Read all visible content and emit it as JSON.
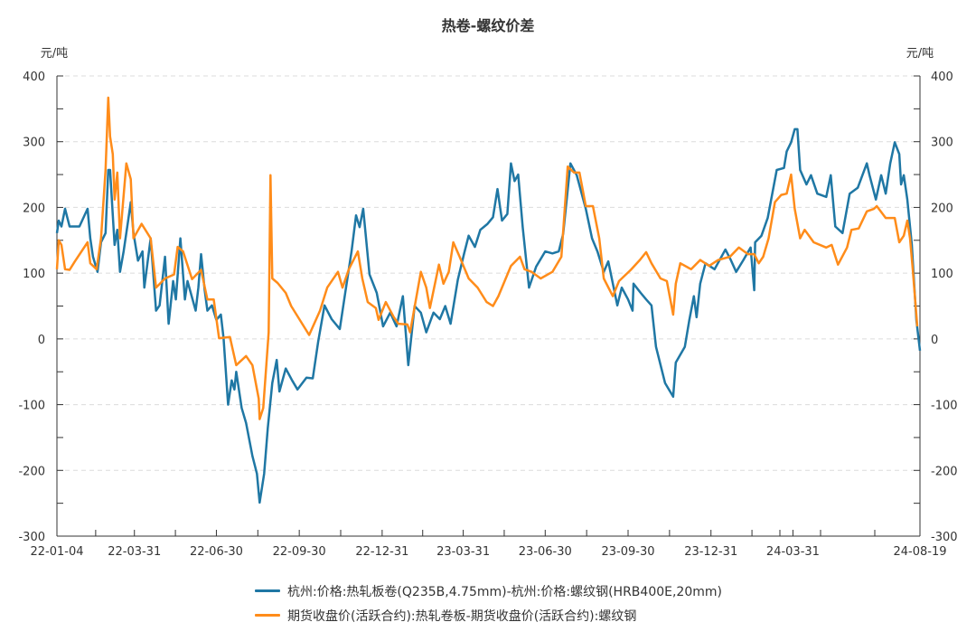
{
  "chart_data": {
    "type": "line",
    "title": "热卷-螺纹价差",
    "ylabel_left": "元/吨",
    "ylabel_right": "元/吨",
    "ylim": [
      -300,
      400
    ],
    "yticks": [
      400,
      300,
      200,
      100,
      0,
      -100,
      -200,
      -300
    ],
    "x_unit": "days since 22-01-04",
    "xlim": [
      0,
      958
    ],
    "xticks": [
      {
        "label": "22-01-04",
        "x": 0
      },
      {
        "label": "22-03-31",
        "x": 86
      },
      {
        "label": "22-06-30",
        "x": 177
      },
      {
        "label": "22-09-30",
        "x": 269
      },
      {
        "label": "22-12-31",
        "x": 361
      },
      {
        "label": "23-03-31",
        "x": 451
      },
      {
        "label": "23-06-30",
        "x": 542
      },
      {
        "label": "23-09-30",
        "x": 634
      },
      {
        "label": "23-12-31",
        "x": 726
      },
      {
        "label": "24-03-31",
        "x": 817
      },
      {
        "label": "24-08-19",
        "x": 958
      }
    ],
    "grid": true,
    "legend_position": "bottom",
    "series": [
      {
        "name": "杭州:价格:热轧板卷(Q235B,4.75mm)-杭州:价格:螺纹钢(HRB400E,20mm)",
        "color": "#1f77a4",
        "points": [
          [
            0,
            161
          ],
          [
            2,
            180
          ],
          [
            5,
            171
          ],
          [
            9,
            198
          ],
          [
            14,
            171
          ],
          [
            25,
            171
          ],
          [
            34,
            198
          ],
          [
            37,
            153
          ],
          [
            40,
            125
          ],
          [
            45,
            102
          ],
          [
            49,
            147
          ],
          [
            54,
            161
          ],
          [
            57,
            257
          ],
          [
            59,
            257
          ],
          [
            64,
            143
          ],
          [
            67,
            166
          ],
          [
            70,
            102
          ],
          [
            74,
            133
          ],
          [
            79,
            180
          ],
          [
            82,
            208
          ],
          [
            85,
            161
          ],
          [
            90,
            119
          ],
          [
            95,
            133
          ],
          [
            97,
            78
          ],
          [
            104,
            153
          ],
          [
            110,
            43
          ],
          [
            114,
            51
          ],
          [
            120,
            125
          ],
          [
            124,
            23
          ],
          [
            129,
            88
          ],
          [
            132,
            60
          ],
          [
            137,
            153
          ],
          [
            142,
            60
          ],
          [
            145,
            88
          ],
          [
            154,
            43
          ],
          [
            157,
            78
          ],
          [
            160,
            129
          ],
          [
            164,
            74
          ],
          [
            167,
            43
          ],
          [
            172,
            51
          ],
          [
            177,
            29
          ],
          [
            182,
            37
          ],
          [
            185,
            1
          ],
          [
            190,
            -100
          ],
          [
            194,
            -63
          ],
          [
            197,
            -77
          ],
          [
            199,
            -50
          ],
          [
            205,
            -105
          ],
          [
            210,
            -128
          ],
          [
            217,
            -178
          ],
          [
            222,
            -205
          ],
          [
            225,
            -249
          ],
          [
            230,
            -205
          ],
          [
            234,
            -136
          ],
          [
            239,
            -67
          ],
          [
            244,
            -32
          ],
          [
            247,
            -80
          ],
          [
            254,
            -45
          ],
          [
            261,
            -63
          ],
          [
            267,
            -77
          ],
          [
            277,
            -59
          ],
          [
            284,
            -60
          ],
          [
            290,
            -4
          ],
          [
            297,
            51
          ],
          [
            305,
            30
          ],
          [
            314,
            15
          ],
          [
            320,
            70
          ],
          [
            327,
            133
          ],
          [
            332,
            188
          ],
          [
            336,
            170
          ],
          [
            340,
            198
          ],
          [
            347,
            98
          ],
          [
            355,
            70
          ],
          [
            362,
            19
          ],
          [
            370,
            40
          ],
          [
            377,
            19
          ],
          [
            384,
            65
          ],
          [
            390,
            -40
          ],
          [
            397,
            50
          ],
          [
            404,
            40
          ],
          [
            410,
            10
          ],
          [
            418,
            40
          ],
          [
            425,
            30
          ],
          [
            431,
            50
          ],
          [
            437,
            23
          ],
          [
            445,
            90
          ],
          [
            452,
            130
          ],
          [
            457,
            157
          ],
          [
            464,
            140
          ],
          [
            470,
            166
          ],
          [
            478,
            175
          ],
          [
            484,
            185
          ],
          [
            489,
            228
          ],
          [
            494,
            180
          ],
          [
            500,
            190
          ],
          [
            504,
            267
          ],
          [
            508,
            240
          ],
          [
            512,
            250
          ],
          [
            517,
            170
          ],
          [
            524,
            78
          ],
          [
            532,
            110
          ],
          [
            542,
            133
          ],
          [
            550,
            130
          ],
          [
            557,
            133
          ],
          [
            562,
            160
          ],
          [
            570,
            267
          ],
          [
            577,
            249
          ],
          [
            587,
            198
          ],
          [
            594,
            153
          ],
          [
            600,
            133
          ],
          [
            607,
            102
          ],
          [
            612,
            118
          ],
          [
            622,
            51
          ],
          [
            627,
            78
          ],
          [
            634,
            60
          ],
          [
            639,
            43
          ],
          [
            640,
            84
          ],
          [
            648,
            70
          ],
          [
            654,
            60
          ],
          [
            660,
            51
          ],
          [
            665,
            -12
          ],
          [
            675,
            -67
          ],
          [
            684,
            -88
          ],
          [
            687,
            -36
          ],
          [
            697,
            -12
          ],
          [
            702,
            29
          ],
          [
            707,
            65
          ],
          [
            710,
            33
          ],
          [
            714,
            84
          ],
          [
            720,
            115
          ],
          [
            730,
            106
          ],
          [
            742,
            136
          ],
          [
            748,
            120
          ],
          [
            754,
            102
          ],
          [
            762,
            120
          ],
          [
            770,
            139
          ],
          [
            774,
            74
          ],
          [
            775,
            147
          ],
          [
            782,
            157
          ],
          [
            789,
            184
          ],
          [
            799,
            257
          ],
          [
            807,
            260
          ],
          [
            810,
            285
          ],
          [
            815,
            299
          ],
          [
            819,
            319
          ],
          [
            822,
            319
          ],
          [
            825,
            257
          ],
          [
            832,
            235
          ],
          [
            837,
            249
          ],
          [
            844,
            221
          ],
          [
            854,
            216
          ],
          [
            859,
            249
          ],
          [
            864,
            171
          ],
          [
            872,
            161
          ],
          [
            880,
            221
          ],
          [
            889,
            230
          ],
          [
            899,
            267
          ],
          [
            902,
            249
          ],
          [
            909,
            212
          ],
          [
            915,
            249
          ],
          [
            920,
            221
          ],
          [
            925,
            267
          ],
          [
            930,
            299
          ],
          [
            935,
            281
          ],
          [
            937,
            235
          ],
          [
            940,
            249
          ],
          [
            944,
            212
          ],
          [
            949,
            143
          ],
          [
            954,
            29
          ],
          [
            958,
            -18
          ]
        ]
      },
      {
        "name": "期货收盘价(活跃合约):热轧卷板-期货收盘价(活跃合约):螺纹钢",
        "color": "#ff8c1a",
        "points": [
          [
            0,
            106
          ],
          [
            2,
            150
          ],
          [
            5,
            143
          ],
          [
            9,
            106
          ],
          [
            14,
            105
          ],
          [
            20,
            118
          ],
          [
            34,
            147
          ],
          [
            37,
            115
          ],
          [
            44,
            106
          ],
          [
            49,
            153
          ],
          [
            54,
            257
          ],
          [
            57,
            367
          ],
          [
            59,
            308
          ],
          [
            62,
            281
          ],
          [
            64,
            212
          ],
          [
            67,
            253
          ],
          [
            70,
            153
          ],
          [
            77,
            267
          ],
          [
            82,
            243
          ],
          [
            85,
            153
          ],
          [
            94,
            175
          ],
          [
            104,
            153
          ],
          [
            110,
            78
          ],
          [
            120,
            92
          ],
          [
            130,
            98
          ],
          [
            134,
            140
          ],
          [
            140,
            133
          ],
          [
            150,
            91
          ],
          [
            160,
            105
          ],
          [
            167,
            60
          ],
          [
            174,
            60
          ],
          [
            180,
            1
          ],
          [
            192,
            3
          ],
          [
            199,
            -40
          ],
          [
            210,
            -26
          ],
          [
            217,
            -40
          ],
          [
            224,
            -91
          ],
          [
            225,
            -122
          ],
          [
            229,
            -105
          ],
          [
            235,
            10
          ],
          [
            237,
            249
          ],
          [
            239,
            92
          ],
          [
            245,
            85
          ],
          [
            254,
            70
          ],
          [
            260,
            50
          ],
          [
            280,
            6
          ],
          [
            292,
            43
          ],
          [
            300,
            78
          ],
          [
            312,
            102
          ],
          [
            317,
            78
          ],
          [
            324,
            106
          ],
          [
            334,
            133
          ],
          [
            339,
            92
          ],
          [
            345,
            56
          ],
          [
            354,
            47
          ],
          [
            357,
            29
          ],
          [
            365,
            56
          ],
          [
            374,
            33
          ],
          [
            379,
            23
          ],
          [
            389,
            22
          ],
          [
            392,
            10
          ],
          [
            404,
            102
          ],
          [
            410,
            78
          ],
          [
            414,
            47
          ],
          [
            424,
            113
          ],
          [
            429,
            84
          ],
          [
            435,
            102
          ],
          [
            440,
            147
          ],
          [
            447,
            125
          ],
          [
            457,
            92
          ],
          [
            467,
            78
          ],
          [
            477,
            56
          ],
          [
            484,
            50
          ],
          [
            490,
            65
          ],
          [
            504,
            111
          ],
          [
            514,
            125
          ],
          [
            519,
            106
          ],
          [
            527,
            102
          ],
          [
            537,
            92
          ],
          [
            550,
            102
          ],
          [
            560,
            125
          ],
          [
            567,
            262
          ],
          [
            574,
            253
          ],
          [
            580,
            253
          ],
          [
            587,
            202
          ],
          [
            595,
            202
          ],
          [
            602,
            153
          ],
          [
            607,
            92
          ],
          [
            617,
            65
          ],
          [
            624,
            88
          ],
          [
            637,
            105
          ],
          [
            647,
            120
          ],
          [
            654,
            132
          ],
          [
            660,
            115
          ],
          [
            670,
            92
          ],
          [
            677,
            88
          ],
          [
            684,
            37
          ],
          [
            687,
            84
          ],
          [
            692,
            115
          ],
          [
            704,
            106
          ],
          [
            714,
            120
          ],
          [
            724,
            111
          ],
          [
            734,
            120
          ],
          [
            747,
            125
          ],
          [
            757,
            139
          ],
          [
            767,
            129
          ],
          [
            774,
            129
          ],
          [
            779,
            115
          ],
          [
            784,
            125
          ],
          [
            790,
            153
          ],
          [
            797,
            208
          ],
          [
            804,
            219
          ],
          [
            810,
            221
          ],
          [
            815,
            250
          ],
          [
            819,
            198
          ],
          [
            825,
            153
          ],
          [
            830,
            166
          ],
          [
            840,
            147
          ],
          [
            854,
            139
          ],
          [
            860,
            143
          ],
          [
            867,
            113
          ],
          [
            877,
            139
          ],
          [
            882,
            166
          ],
          [
            890,
            168
          ],
          [
            899,
            194
          ],
          [
            907,
            198
          ],
          [
            910,
            202
          ],
          [
            920,
            184
          ],
          [
            930,
            184
          ],
          [
            935,
            147
          ],
          [
            940,
            157
          ],
          [
            944,
            180
          ],
          [
            947,
            153
          ],
          [
            950,
            106
          ],
          [
            955,
            19
          ]
        ]
      }
    ]
  }
}
